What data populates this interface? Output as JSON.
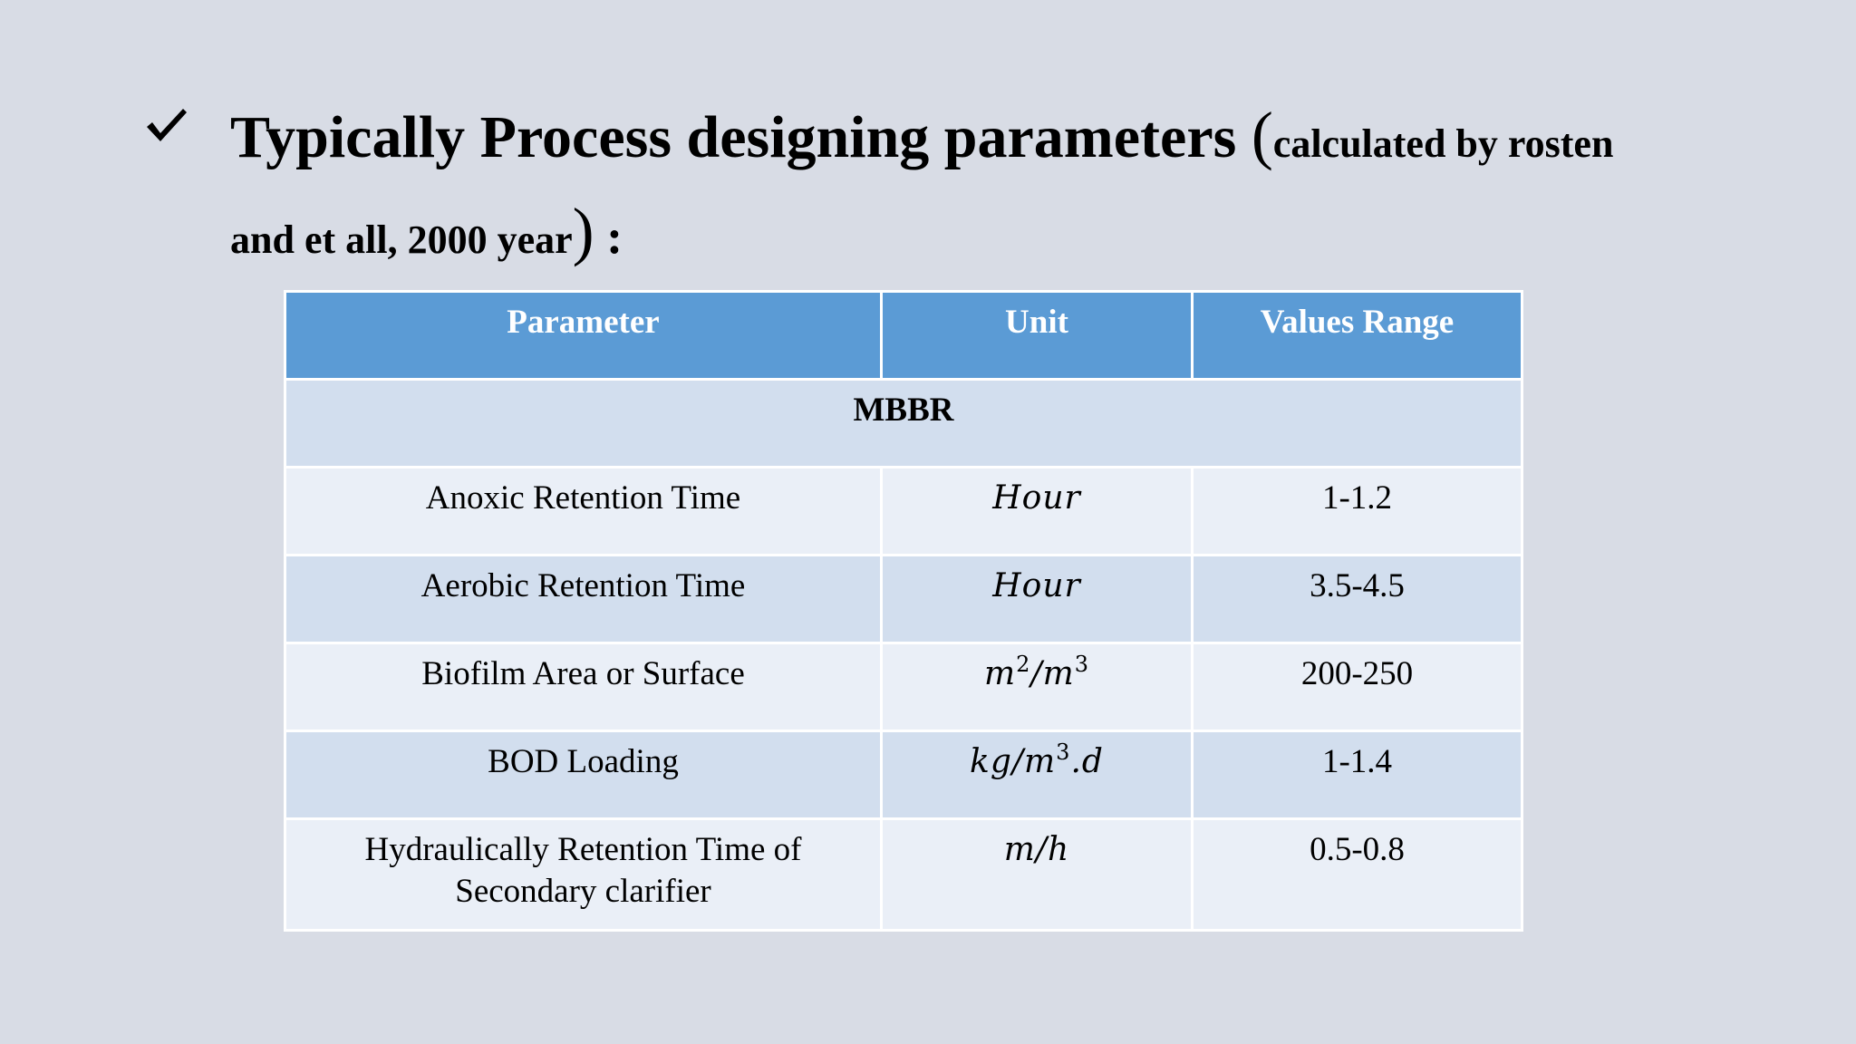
{
  "title": {
    "main": "Typically Process designing parameters ",
    "open_paren": "(",
    "note_1": "calculated by rosten",
    "note_2": "and et all, 2000 year",
    "close_paren": ")",
    "colon": " :",
    "bullet_icon": "check-mark-icon"
  },
  "table": {
    "headers": [
      "Parameter",
      "Unit",
      "Values Range"
    ],
    "section": "MBBR",
    "rows": [
      {
        "parameter": "Anoxic Retention Time",
        "unit": {
          "base": "Hour",
          "exp": "",
          "base2": "",
          "exp2": "",
          "suffix": ""
        },
        "range": "1-1.2"
      },
      {
        "parameter": "Aerobic Retention Time",
        "unit": {
          "base": "Hour",
          "exp": "",
          "base2": "",
          "exp2": "",
          "suffix": ""
        },
        "range": "3.5-4.5"
      },
      {
        "parameter": "Biofilm Area or Surface",
        "unit": {
          "base": "m",
          "exp": "2",
          "base2": "/m",
          "exp2": "3",
          "suffix": ""
        },
        "range": "200-250"
      },
      {
        "parameter": "BOD Loading",
        "unit": {
          "base": "kg/m",
          "exp": "3",
          "base2": ".d",
          "exp2": "",
          "suffix": ""
        },
        "range": "1-1.4"
      },
      {
        "parameter": "Hydraulically Retention Time of Secondary clarifier",
        "unit": {
          "base": "m/h",
          "exp": "",
          "base2": "",
          "exp2": "",
          "suffix": ""
        },
        "range": "0.5-0.8"
      }
    ]
  },
  "colors": {
    "background": "#d8dce5",
    "header": "#5b9bd5",
    "row_dark": "#d2deee",
    "row_light": "#eaeff7"
  }
}
